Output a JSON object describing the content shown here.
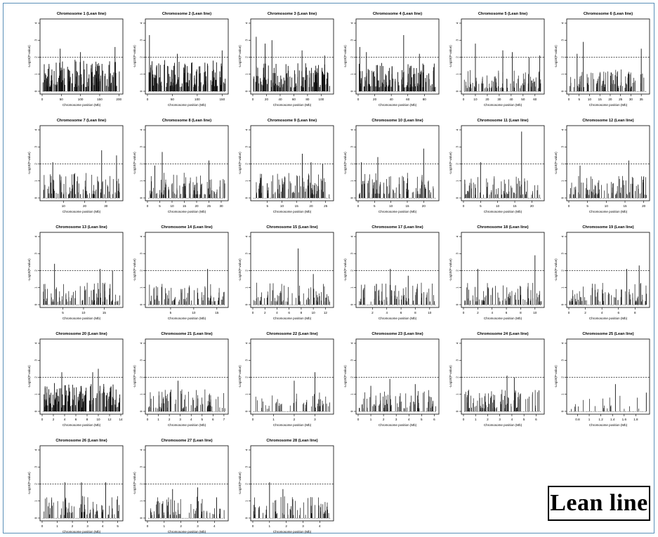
{
  "figure_label": "Lean line",
  "y_axis_label": "-Log10(P-value)",
  "x_axis_label": "Chromosome position (Mb)",
  "threshold": 2,
  "colors": {
    "bars": "#111111",
    "threshold_line": "#222222",
    "frame_border": "#5a8fb8"
  },
  "chart_data": [
    {
      "type": "bar",
      "title": "Chromosome 1 (Lean line)",
      "xticks": [
        0,
        50,
        100,
        150,
        200
      ],
      "xlim": [
        0,
        205
      ],
      "ylim": [
        0,
        4
      ],
      "yticks": [
        0,
        1,
        2,
        3,
        4
      ],
      "threshold": 2,
      "density": 0.95,
      "peaks": [
        [
          47,
          2.5
        ],
        [
          100,
          2.3
        ],
        [
          190,
          2.6
        ]
      ],
      "baseline": 1.0
    },
    {
      "type": "bar",
      "title": "Chromosome 2 (Lean line)",
      "xticks": [
        0,
        50,
        100,
        150
      ],
      "xlim": [
        0,
        158
      ],
      "ylim": [
        0,
        4
      ],
      "yticks": [
        0,
        1,
        2,
        3,
        4
      ],
      "threshold": 2,
      "density": 0.95,
      "peaks": [
        [
          4,
          3.3
        ],
        [
          60,
          2.2
        ],
        [
          150,
          2.4
        ]
      ],
      "baseline": 1.0
    },
    {
      "type": "bar",
      "title": "Chromosome 3 (Lean line)",
      "xticks": [
        0,
        20,
        40,
        60,
        80,
        100
      ],
      "xlim": [
        0,
        115
      ],
      "ylim": [
        0,
        4
      ],
      "yticks": [
        0,
        1,
        2,
        3,
        4
      ],
      "threshold": 2,
      "density": 0.9,
      "peaks": [
        [
          5,
          3.2
        ],
        [
          18,
          2.8
        ],
        [
          28,
          3.0
        ],
        [
          72,
          2.4
        ],
        [
          105,
          2.1
        ]
      ],
      "baseline": 0.9
    },
    {
      "type": "bar",
      "title": "Chromosome 4 (Lean line)",
      "xticks": [
        0,
        20,
        40,
        60,
        80
      ],
      "xlim": [
        0,
        95
      ],
      "ylim": [
        0,
        4
      ],
      "yticks": [
        0,
        1,
        2,
        3,
        4
      ],
      "threshold": 2,
      "density": 0.85,
      "peaks": [
        [
          2,
          2.6
        ],
        [
          10,
          2.3
        ],
        [
          55,
          3.3
        ],
        [
          74,
          2.2
        ]
      ],
      "baseline": 0.9
    },
    {
      "type": "bar",
      "title": "Chromosome 5 (Lean line)",
      "xticks": [
        0,
        10,
        20,
        30,
        40,
        50,
        60
      ],
      "xlim": [
        0,
        66
      ],
      "ylim": [
        0,
        4
      ],
      "yticks": [
        0,
        1,
        2,
        3,
        4
      ],
      "threshold": 2,
      "density": 0.6,
      "peaks": [
        [
          10,
          2.8
        ],
        [
          33,
          2.4
        ],
        [
          41,
          2.3
        ],
        [
          55,
          2.0
        ],
        [
          64,
          2.1
        ]
      ],
      "baseline": 0.7
    },
    {
      "type": "bar",
      "title": "Chromosome 6 (Lean line)",
      "xticks": [
        0,
        5,
        10,
        15,
        20,
        25,
        30,
        35
      ],
      "xlim": [
        0,
        38
      ],
      "ylim": [
        0,
        4
      ],
      "yticks": [
        0,
        1,
        2,
        3,
        4
      ],
      "threshold": 2,
      "density": 0.6,
      "peaks": [
        [
          4,
          2.2
        ],
        [
          7,
          2.9
        ],
        [
          35,
          2.5
        ]
      ],
      "baseline": 0.7
    },
    {
      "type": "bar",
      "title": "Chromosome 7 (Lean line)",
      "xticks": [
        10,
        20,
        30
      ],
      "xlim": [
        0,
        37
      ],
      "ylim": [
        0,
        4
      ],
      "yticks": [
        0,
        1,
        2,
        3,
        4
      ],
      "threshold": 2,
      "density": 0.6,
      "peaks": [
        [
          5,
          2.1
        ],
        [
          28,
          2.8
        ],
        [
          35,
          2.5
        ]
      ],
      "baseline": 0.8
    },
    {
      "type": "bar",
      "title": "Chromosome 8 (Lean line)",
      "xticks": [
        0,
        5,
        10,
        15,
        20,
        25,
        30
      ],
      "xlim": [
        0,
        32
      ],
      "ylim": [
        0,
        4
      ],
      "yticks": [
        0,
        1,
        2,
        3,
        4
      ],
      "threshold": 2,
      "density": 0.55,
      "peaks": [
        [
          3,
          1.9
        ],
        [
          6,
          2.7
        ],
        [
          25,
          2.2
        ]
      ],
      "baseline": 0.8
    },
    {
      "type": "bar",
      "title": "Chromosome 9 (Lean line)",
      "xticks": [
        5,
        10,
        15,
        20,
        25
      ],
      "xlim": [
        0,
        27
      ],
      "ylim": [
        0,
        4
      ],
      "yticks": [
        0,
        1,
        2,
        3,
        4
      ],
      "threshold": 2,
      "density": 0.6,
      "peaks": [
        [
          17,
          2.6
        ],
        [
          20,
          2.1
        ],
        [
          24,
          2.0
        ]
      ],
      "baseline": 0.8
    },
    {
      "type": "bar",
      "title": "Chromosome 10 (Lean line)",
      "xticks": [
        0,
        5,
        10,
        15,
        20
      ],
      "xlim": [
        0,
        24
      ],
      "ylim": [
        0,
        4
      ],
      "yticks": [
        0,
        1,
        2,
        3,
        4
      ],
      "threshold": 2,
      "density": 0.55,
      "peaks": [
        [
          1,
          2.1
        ],
        [
          6,
          2.4
        ],
        [
          20,
          2.9
        ]
      ],
      "baseline": 0.8
    },
    {
      "type": "bar",
      "title": "Chromosome 11 (Lean line)",
      "xticks": [
        0,
        5,
        10,
        15,
        20
      ],
      "xlim": [
        0,
        23
      ],
      "ylim": [
        0,
        4
      ],
      "yticks": [
        0,
        1,
        2,
        3,
        4
      ],
      "threshold": 2,
      "density": 0.5,
      "peaks": [
        [
          5,
          2.1
        ],
        [
          17,
          3.9
        ]
      ],
      "baseline": 0.7
    },
    {
      "type": "bar",
      "title": "Chromosome 12 (Lean line)",
      "xticks": [
        0,
        5,
        10,
        15,
        20
      ],
      "xlim": [
        0,
        21
      ],
      "ylim": [
        0,
        4
      ],
      "yticks": [
        0,
        1,
        2,
        3,
        4
      ],
      "threshold": 2,
      "density": 0.55,
      "peaks": [
        [
          3,
          1.9
        ],
        [
          16,
          2.2
        ]
      ],
      "baseline": 0.7
    },
    {
      "type": "bar",
      "title": "Chromosome 13 (Lean line)",
      "xticks": [
        5,
        10,
        15
      ],
      "xlim": [
        0,
        19
      ],
      "ylim": [
        0,
        4
      ],
      "yticks": [
        0,
        1,
        2,
        3,
        4
      ],
      "threshold": 2,
      "density": 0.5,
      "peaks": [
        [
          3,
          2.4
        ],
        [
          14,
          2.1
        ],
        [
          17,
          2.0
        ]
      ],
      "baseline": 0.7
    },
    {
      "type": "bar",
      "title": "Chromosome 14 (Lean line)",
      "xticks": [
        5,
        10,
        15
      ],
      "xlim": [
        0,
        17
      ],
      "ylim": [
        0,
        4
      ],
      "yticks": [
        0,
        1,
        2,
        3,
        4
      ],
      "threshold": 2,
      "density": 0.5,
      "peaks": [
        [
          13,
          2.1
        ]
      ],
      "baseline": 0.7
    },
    {
      "type": "bar",
      "title": "Chromosome 15 (Lean line)",
      "xticks": [
        0,
        2,
        4,
        6,
        8,
        10,
        12
      ],
      "xlim": [
        0,
        13
      ],
      "ylim": [
        0,
        4
      ],
      "yticks": [
        0,
        1,
        2,
        3,
        4
      ],
      "threshold": 2,
      "density": 0.45,
      "peaks": [
        [
          7.5,
          3.3
        ],
        [
          10,
          1.8
        ]
      ],
      "baseline": 0.7
    },
    {
      "type": "bar",
      "title": "Chromosome 17 (Lean line)",
      "xticks": [
        2,
        4,
        6,
        8,
        10
      ],
      "xlim": [
        0,
        11
      ],
      "ylim": [
        0,
        4
      ],
      "yticks": [
        0,
        1,
        2,
        3,
        4
      ],
      "threshold": 2,
      "density": 0.5,
      "peaks": [
        [
          4.5,
          2.1
        ],
        [
          7,
          1.7
        ]
      ],
      "baseline": 0.7
    },
    {
      "type": "bar",
      "title": "Chromosome 18 (Lean line)",
      "xticks": [
        0,
        2,
        4,
        6,
        8,
        10
      ],
      "xlim": [
        0,
        11
      ],
      "ylim": [
        0,
        4
      ],
      "yticks": [
        0,
        1,
        2,
        3,
        4
      ],
      "threshold": 2,
      "density": 0.5,
      "peaks": [
        [
          2,
          2.1
        ],
        [
          10,
          2.9
        ]
      ],
      "baseline": 0.7
    },
    {
      "type": "bar",
      "title": "Chromosome 19 (Lean line)",
      "xticks": [
        0,
        2,
        4,
        6,
        8
      ],
      "xlim": [
        0,
        9.5
      ],
      "ylim": [
        0,
        4
      ],
      "yticks": [
        0,
        1,
        2,
        3,
        4
      ],
      "threshold": 2,
      "density": 0.5,
      "peaks": [
        [
          7,
          2.1
        ],
        [
          8.5,
          2.3
        ]
      ],
      "baseline": 0.7
    },
    {
      "type": "bar",
      "title": "Chromosome 20 (Lean line)",
      "xticks": [
        0,
        2,
        4,
        6,
        8,
        10,
        12,
        14
      ],
      "xlim": [
        0,
        14
      ],
      "ylim": [
        0,
        4
      ],
      "yticks": [
        0,
        1,
        2,
        3,
        4
      ],
      "threshold": 2,
      "density": 0.95,
      "peaks": [
        [
          3.5,
          2.3
        ],
        [
          9,
          2.3
        ],
        [
          10,
          2.5
        ]
      ],
      "baseline": 0.9
    },
    {
      "type": "bar",
      "title": "Chromosome 21 (Lean line)",
      "xticks": [
        0,
        1,
        2,
        3,
        4,
        5,
        6,
        7
      ],
      "xlim": [
        0,
        7.2
      ],
      "ylim": [
        0,
        4
      ],
      "yticks": [
        0,
        1,
        2,
        3,
        4
      ],
      "threshold": 2,
      "density": 0.5,
      "peaks": [
        [
          2.8,
          1.8
        ]
      ],
      "baseline": 0.7
    },
    {
      "type": "bar",
      "title": "Chromosome 22 (Lean line)",
      "xticks": [
        0,
        1,
        2,
        3
      ],
      "xlim": [
        0,
        3.8
      ],
      "ylim": [
        0,
        4
      ],
      "yticks": [
        0,
        1,
        2,
        3,
        4
      ],
      "threshold": 2,
      "density": 0.3,
      "peaks": [
        [
          2,
          1.8
        ],
        [
          3,
          2.3
        ]
      ],
      "baseline": 0.6
    },
    {
      "type": "bar",
      "title": "Chromosome 23 (Lean line)",
      "xticks": [
        0,
        1,
        2,
        3,
        4,
        5,
        6
      ],
      "xlim": [
        0,
        6.2
      ],
      "ylim": [
        0,
        4
      ],
      "yticks": [
        0,
        1,
        2,
        3,
        4
      ],
      "threshold": 2,
      "density": 0.5,
      "peaks": [
        [
          1,
          1.5
        ],
        [
          2.5,
          1.9
        ],
        [
          4.5,
          1.6
        ]
      ],
      "baseline": 0.7
    },
    {
      "type": "bar",
      "title": "Chromosome 24 (Lean line)",
      "xticks": [
        0,
        1,
        2,
        3,
        4,
        5,
        6
      ],
      "xlim": [
        0,
        6.5
      ],
      "ylim": [
        0,
        4
      ],
      "yticks": [
        0,
        1,
        2,
        3,
        4
      ],
      "threshold": 2,
      "density": 0.55,
      "peaks": [
        [
          3.6,
          2.1
        ],
        [
          4.2,
          2.0
        ]
      ],
      "baseline": 0.7
    },
    {
      "type": "bar",
      "title": "Chromosome 25 (Lean line)",
      "xticks": [
        0.8,
        1.0,
        1.2,
        1.4,
        1.6,
        1.8
      ],
      "xlim": [
        0.65,
        2.0
      ],
      "ylim": [
        0,
        4
      ],
      "yticks": [
        0,
        1,
        2,
        3,
        4
      ],
      "threshold": 2,
      "density": 0.12,
      "peaks": [
        [
          1.45,
          1.6
        ],
        [
          1.98,
          1.1
        ]
      ],
      "baseline": 0.5
    },
    {
      "type": "bar",
      "title": "Chromosome 26 (Lean line)",
      "xticks": [
        0,
        1,
        2,
        3,
        4,
        5
      ],
      "xlim": [
        0,
        5.2
      ],
      "ylim": [
        0,
        4
      ],
      "yticks": [
        0,
        1,
        2,
        3,
        4
      ],
      "threshold": 2,
      "density": 0.45,
      "peaks": [
        [
          1.5,
          2.1
        ],
        [
          2.6,
          2.1
        ],
        [
          4.2,
          2.1
        ]
      ],
      "baseline": 0.7
    },
    {
      "type": "bar",
      "title": "Chromosome 27 (Lean line)",
      "xticks": [
        0,
        1,
        2,
        3,
        4
      ],
      "xlim": [
        0,
        4.7
      ],
      "ylim": [
        0,
        4
      ],
      "yticks": [
        0,
        1,
        2,
        3,
        4
      ],
      "threshold": 2,
      "density": 0.4,
      "peaks": [
        [
          1.5,
          1.7
        ],
        [
          3,
          1.8
        ]
      ],
      "baseline": 0.7
    },
    {
      "type": "bar",
      "title": "Chromosome 28 (Lean line)",
      "xticks": [
        0,
        1,
        2,
        3,
        4
      ],
      "xlim": [
        0,
        4.7
      ],
      "ylim": [
        0,
        4
      ],
      "yticks": [
        0,
        1,
        2,
        3,
        4
      ],
      "threshold": 2,
      "density": 0.4,
      "peaks": [
        [
          1,
          2.1
        ],
        [
          1.8,
          1.7
        ]
      ],
      "baseline": 0.7
    }
  ]
}
